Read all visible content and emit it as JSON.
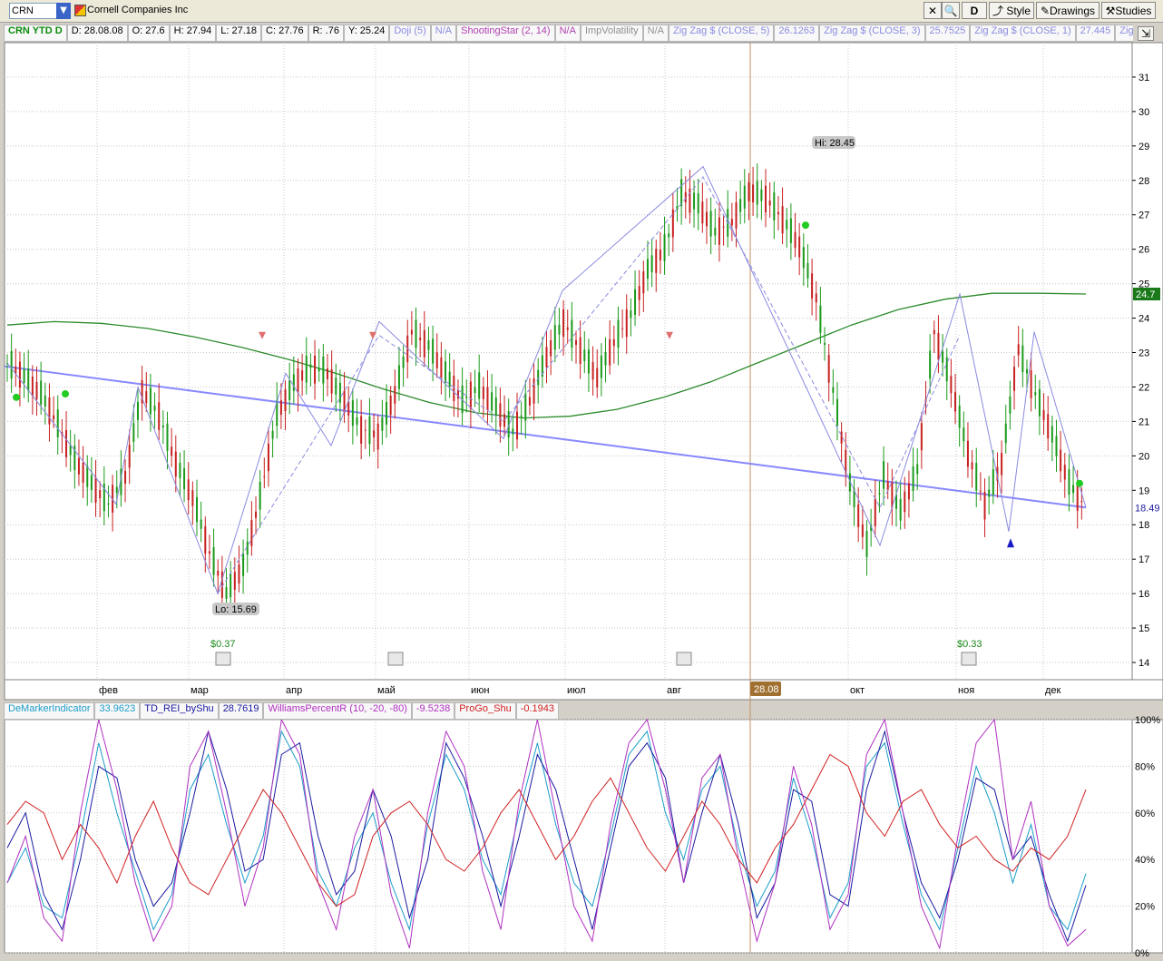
{
  "toolbar": {
    "symbol": "CRN",
    "company": "Cornell Companies Inc",
    "period_button": "D",
    "style_label": "Style",
    "drawings_label": "Drawings",
    "studies_label": "Studies"
  },
  "header": {
    "title": "CRN YTD D",
    "date": "D: 28.08.08",
    "open": "O: 27.6",
    "high": "H: 27.94",
    "low": "L: 27.18",
    "close": "C: 27.76",
    "range": "R: .76",
    "y": "Y: 25.24",
    "studies": [
      {
        "name": "Doji (5)",
        "value": "N/A",
        "color": "#8a8ae0"
      },
      {
        "name": "ShootingStar (2, 14)",
        "value": "N/A",
        "color": "#b040b0"
      },
      {
        "name": "ImpVolatility",
        "value": "N/A",
        "color": "#909090"
      },
      {
        "name": "Zig Zag $ (CLOSE, 5)",
        "value": "26.1263",
        "color": "#8a8ae0"
      },
      {
        "name": "Zig Zag $ (CLOSE, 3)",
        "value": "25.7525",
        "color": "#8a8ae0"
      },
      {
        "name": "Zig Zag $ (CLOSE, 1)",
        "value": "27.445",
        "color": "#8a8ae0"
      },
      {
        "name": "Zig Zag $ (CLO...",
        "value": "",
        "color": "#8a8ae0"
      }
    ]
  },
  "lower_header": [
    {
      "name": "DeMarkerIndicator",
      "value": "33.9623",
      "color": "#1a9cc8"
    },
    {
      "name": "TD_REI_byShu",
      "value": "28.7619",
      "color": "#1a1aa0"
    },
    {
      "name": "WilliamsPercentR (10, -20, -80)",
      "value": "-9.5238",
      "color": "#b030c0"
    },
    {
      "name": "ProGo_Shu",
      "value": "-0.1943",
      "color": "#d02020"
    }
  ],
  "chart_data": [
    {
      "type": "candlestick",
      "x_labels": [
        "фев",
        "мар",
        "апр",
        "май",
        "июн",
        "июл",
        "авг",
        "окт",
        "ноя",
        "дек"
      ],
      "current_date_label": "28.08",
      "ylim": [
        13.5,
        32
      ],
      "y_ticks": [
        14,
        15,
        16,
        17,
        18,
        19,
        20,
        21,
        22,
        23,
        24,
        25,
        26,
        27,
        28,
        29,
        30,
        31
      ],
      "hi_label": "Hi: 28.45",
      "lo_label": "Lo: 15.69",
      "last_price": "18.49",
      "ma_value": "24.7",
      "dividends": [
        "$0.37",
        "$0.33"
      ],
      "close_path": [
        22.7,
        22.3,
        21.8,
        20.9,
        19.9,
        19.2,
        18.6,
        19.4,
        21.9,
        21.2,
        19.8,
        18.8,
        17.2,
        16.0,
        16.8,
        18.8,
        21.2,
        22.1,
        22.6,
        22.4,
        21.6,
        20.8,
        20.6,
        21.8,
        23.6,
        23.2,
        22.4,
        21.6,
        22.0,
        21.4,
        20.7,
        21.6,
        22.9,
        23.9,
        23.1,
        22.3,
        23.3,
        24.1,
        25.4,
        26.0,
        27.6,
        27.3,
        26.5,
        26.8,
        27.7,
        27.5,
        26.9,
        26.1,
        24.6,
        21.9,
        19.2,
        17.4,
        19.4,
        18.4,
        19.6,
        23.6,
        22.1,
        20.1,
        18.6,
        19.8,
        23.1,
        21.8,
        20.6,
        19.2,
        18.5
      ],
      "ma_path": [
        23.8,
        23.9,
        23.85,
        23.7,
        23.45,
        23.15,
        22.8,
        22.4,
        21.95,
        21.55,
        21.25,
        21.1,
        21.15,
        21.35,
        21.7,
        22.15,
        22.7,
        23.25,
        23.8,
        24.25,
        24.55,
        24.72,
        24.72,
        24.7
      ],
      "trend_line": [
        22.6,
        18.5
      ],
      "series_lower": [
        {
          "name": "DeMarkerIndicator",
          "values": [
            0.3,
            0.45,
            0.2,
            0.15,
            0.5,
            0.9,
            0.6,
            0.35,
            0.1,
            0.25,
            0.7,
            0.85,
            0.55,
            0.3,
            0.5,
            0.95,
            0.8,
            0.35,
            0.2,
            0.45,
            0.6,
            0.3,
            0.1,
            0.55,
            0.85,
            0.7,
            0.4,
            0.25,
            0.6,
            0.9,
            0.55,
            0.3,
            0.2,
            0.5,
            0.85,
            0.95,
            0.6,
            0.4,
            0.7,
            0.8,
            0.45,
            0.2,
            0.35,
            0.75,
            0.5,
            0.15,
            0.3,
            0.8,
            0.9,
            0.55,
            0.25,
            0.1,
            0.45,
            0.8,
            0.6,
            0.3,
            0.55,
            0.2,
            0.1,
            0.34
          ]
        },
        {
          "name": "TD_REI_byShu",
          "values": [
            0.45,
            0.6,
            0.25,
            0.1,
            0.4,
            0.8,
            0.75,
            0.4,
            0.2,
            0.3,
            0.6,
            0.95,
            0.7,
            0.35,
            0.4,
            0.85,
            0.9,
            0.5,
            0.25,
            0.35,
            0.7,
            0.5,
            0.15,
            0.4,
            0.9,
            0.75,
            0.5,
            0.2,
            0.5,
            0.85,
            0.7,
            0.4,
            0.1,
            0.45,
            0.8,
            0.9,
            0.75,
            0.3,
            0.6,
            0.85,
            0.55,
            0.15,
            0.3,
            0.7,
            0.65,
            0.25,
            0.2,
            0.7,
            0.95,
            0.6,
            0.3,
            0.15,
            0.4,
            0.75,
            0.7,
            0.4,
            0.5,
            0.25,
            0.05,
            0.29
          ]
        },
        {
          "name": "WilliamsPercentR",
          "values": [
            0.3,
            0.5,
            0.15,
            0.05,
            0.6,
            1.0,
            0.7,
            0.3,
            0.05,
            0.2,
            0.8,
            0.95,
            0.6,
            0.2,
            0.45,
            1.0,
            0.85,
            0.3,
            0.1,
            0.5,
            0.7,
            0.25,
            0.02,
            0.6,
            0.95,
            0.8,
            0.35,
            0.1,
            0.65,
            1.0,
            0.6,
            0.2,
            0.05,
            0.55,
            0.9,
            1.0,
            0.7,
            0.3,
            0.75,
            0.85,
            0.4,
            0.05,
            0.3,
            0.8,
            0.55,
            0.1,
            0.25,
            0.85,
            1.0,
            0.6,
            0.2,
            0.02,
            0.5,
            0.9,
            1.0,
            0.4,
            0.65,
            0.2,
            0.03,
            0.1
          ]
        },
        {
          "name": "ProGo_Shu",
          "values": [
            0.55,
            0.65,
            0.6,
            0.4,
            0.55,
            0.45,
            0.3,
            0.5,
            0.65,
            0.45,
            0.3,
            0.25,
            0.4,
            0.55,
            0.7,
            0.6,
            0.45,
            0.3,
            0.2,
            0.25,
            0.5,
            0.6,
            0.65,
            0.55,
            0.4,
            0.35,
            0.45,
            0.6,
            0.7,
            0.55,
            0.4,
            0.5,
            0.65,
            0.75,
            0.6,
            0.45,
            0.35,
            0.5,
            0.65,
            0.55,
            0.4,
            0.3,
            0.45,
            0.55,
            0.7,
            0.85,
            0.8,
            0.6,
            0.5,
            0.65,
            0.7,
            0.55,
            0.45,
            0.5,
            0.4,
            0.35,
            0.45,
            0.4,
            0.5,
            0.7
          ]
        }
      ],
      "lower_y_ticks": [
        "100%",
        "80%",
        "60%",
        "40%",
        "20%",
        "0%"
      ]
    }
  ],
  "colors": {
    "up": "#1a9a1a",
    "down": "#c82020",
    "zigzag": "#8a8ae0",
    "trend": "#8888ff",
    "ma": "#2a8a2a",
    "grid": "#c8c8c8",
    "price_box": "#2aa0c8"
  }
}
